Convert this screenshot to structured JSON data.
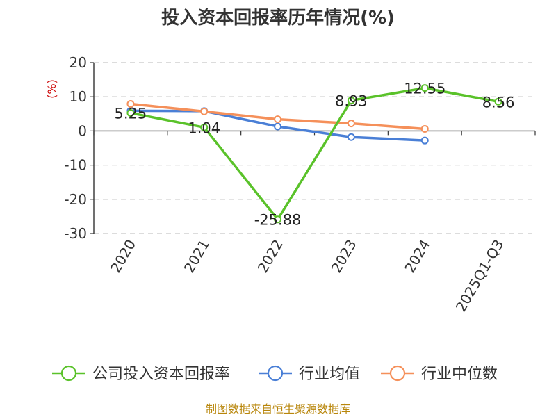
{
  "chart_data": {
    "type": "line",
    "title": "投入资本回报率历年情况(%)",
    "unit_label": "(%)",
    "categories": [
      "2020",
      "2021",
      "2022",
      "2023",
      "2024",
      "2025Q1-Q3"
    ],
    "ylim": [
      -30,
      20
    ],
    "yticks": [
      20,
      10,
      0,
      -10,
      -20,
      -30
    ],
    "grid": true,
    "legend_position": "bottom",
    "series": [
      {
        "name": "公司投入资本回报率",
        "color": "#5ac22a",
        "values": [
          5.25,
          1.04,
          -25.88,
          8.93,
          12.55,
          8.56
        ],
        "labels": [
          "5.25",
          "1.04",
          "-25.88",
          "8.93",
          "12.55",
          "8.56"
        ]
      },
      {
        "name": "行业均值",
        "color": "#4a7fd6",
        "values": [
          5.9,
          5.8,
          1.3,
          -1.8,
          -2.8,
          null
        ]
      },
      {
        "name": "行业中位数",
        "color": "#f5905a",
        "values": [
          7.9,
          5.7,
          3.4,
          2.2,
          0.6,
          null
        ]
      }
    ],
    "source": "制图数据来自恒生聚源数据库"
  }
}
